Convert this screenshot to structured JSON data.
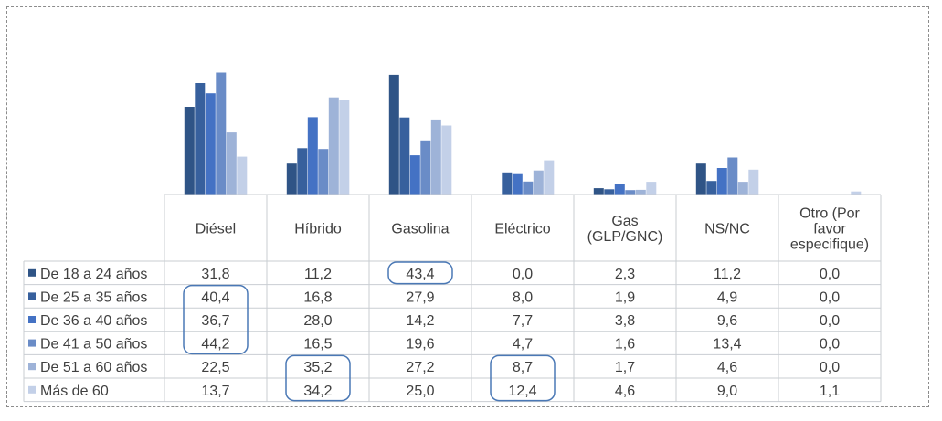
{
  "chart_data": {
    "type": "bar",
    "categories": [
      "Diésel",
      "Híbrido",
      "Gasolina",
      "Eléctrico",
      "Gas (GLP/GNC)",
      "NS/NC",
      "Otro (Por favor especifique)"
    ],
    "category_lines": [
      [
        "Diésel"
      ],
      [
        "Híbrido"
      ],
      [
        "Gasolina"
      ],
      [
        "Eléctrico"
      ],
      [
        "Gas",
        "(GLP/GNC)"
      ],
      [
        "NS/NC"
      ],
      [
        "Otro (Por",
        "favor",
        "especifique)"
      ]
    ],
    "series": [
      {
        "name": "De 18 a 24 años",
        "color": "#2f5486",
        "values": [
          31.8,
          11.2,
          43.4,
          0.0,
          2.3,
          11.2,
          0.0
        ],
        "labels": [
          "31,8",
          "11,2",
          "43,4",
          "0,0",
          "2,3",
          "11,2",
          "0,0"
        ]
      },
      {
        "name": "De 25 a 35 años",
        "color": "#37609d",
        "values": [
          40.4,
          16.8,
          27.9,
          8.0,
          1.9,
          4.9,
          0.0
        ],
        "labels": [
          "40,4",
          "16,8",
          "27,9",
          "8,0",
          "1,9",
          "4,9",
          "0,0"
        ]
      },
      {
        "name": "De 36 a 40 años",
        "color": "#4472c4",
        "values": [
          36.7,
          28.0,
          14.2,
          7.7,
          3.8,
          9.6,
          0.0
        ],
        "labels": [
          "36,7",
          "28,0",
          "14,2",
          "7,7",
          "3,8",
          "9,6",
          "0,0"
        ]
      },
      {
        "name": "De 41 a 50 años",
        "color": "#6a8cc7",
        "values": [
          44.2,
          16.5,
          19.6,
          4.7,
          1.6,
          13.4,
          0.0
        ],
        "labels": [
          "44,2",
          "16,5",
          "19,6",
          "4,7",
          "1,6",
          "13,4",
          "0,0"
        ]
      },
      {
        "name": "De 51 a 60 años",
        "color": "#9eb3d8",
        "values": [
          22.5,
          35.2,
          27.2,
          8.7,
          1.7,
          4.6,
          0.0
        ],
        "labels": [
          "22,5",
          "35,2",
          "27,2",
          "8,7",
          "1,7",
          "4,6",
          "0,0"
        ]
      },
      {
        "name": "Más de 60",
        "color": "#c3d0e8",
        "values": [
          13.7,
          34.2,
          25.0,
          12.4,
          4.6,
          9.0,
          1.1
        ],
        "labels": [
          "13,7",
          "34,2",
          "25,0",
          "12,4",
          "4,6",
          "9,0",
          "1,1"
        ]
      }
    ],
    "ylim": [
      0,
      45
    ],
    "grid": false,
    "legend": "data-table-left",
    "title": "",
    "xlabel": "",
    "ylabel": "",
    "highlights": [
      {
        "category": "Gasolina",
        "series": [
          "De 18 a 24 años"
        ]
      },
      {
        "category": "Diésel",
        "series": [
          "De 25 a 35 años",
          "De 36 a 40 años",
          "De 41 a 50 años"
        ]
      },
      {
        "category": "Híbrido",
        "series": [
          "De 51 a 60 años",
          "Más de 60"
        ]
      },
      {
        "category": "Eléctrico",
        "series": [
          "De 51 a 60 años",
          "Más de 60"
        ]
      }
    ],
    "highlight_color": "#4a78b5"
  }
}
